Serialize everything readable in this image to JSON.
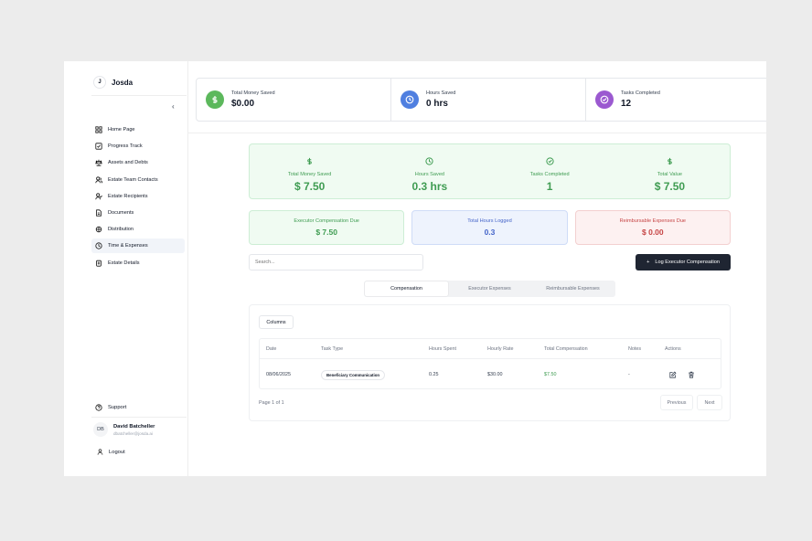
{
  "brand": {
    "initial": "J",
    "name": "Josda"
  },
  "sidebar": {
    "items": [
      {
        "label": "Home Page",
        "icon": "home-grid-icon"
      },
      {
        "label": "Progress Track",
        "icon": "checkbox-icon"
      },
      {
        "label": "Assets and Debts",
        "icon": "scale-icon"
      },
      {
        "label": "Estate Team Contacts",
        "icon": "users-icon"
      },
      {
        "label": "Estate Recipients",
        "icon": "user-check-icon"
      },
      {
        "label": "Documents",
        "icon": "document-icon"
      },
      {
        "label": "Distribution",
        "icon": "distribution-icon"
      },
      {
        "label": "Time & Expenses",
        "icon": "clock-icon",
        "active": true
      },
      {
        "label": "Estate Details",
        "icon": "clipboard-icon"
      }
    ],
    "support": "Support",
    "user": {
      "initials": "DB",
      "name": "David Batcheller",
      "email": "dbatcheller@josda.ai"
    },
    "logout": "Logout"
  },
  "top_stats": [
    {
      "label": "Total Money Saved",
      "value": "$0.00",
      "color": "#5cb85c",
      "icon": "dollar-icon"
    },
    {
      "label": "Hours Saved",
      "value": "0 hrs",
      "color": "#4f7fe0",
      "icon": "clock-icon"
    },
    {
      "label": "Tasks Completed",
      "value": "12",
      "color": "#9b59d0",
      "icon": "check-circle-icon"
    }
  ],
  "summary": [
    {
      "label": "Total Money Saved",
      "value": "$ 7.50",
      "icon": "dollar-icon"
    },
    {
      "label": "Hours Saved",
      "value": "0.3 hrs",
      "icon": "clock-icon"
    },
    {
      "label": "Tasks Completed",
      "value": "1",
      "icon": "check-circle-icon"
    },
    {
      "label": "Total Value",
      "value": "$ 7.50",
      "icon": "dollar-icon"
    }
  ],
  "cards": [
    {
      "label": "Executor Compensation Due",
      "value": "$ 7.50"
    },
    {
      "label": "Total Hours Logged",
      "value": "0.3"
    },
    {
      "label": "Reimbursable Expenses Due",
      "value": "$ 0.00"
    }
  ],
  "search": {
    "placeholder": "Search..."
  },
  "actions": {
    "log_button": "Log Executor Compensation"
  },
  "tabs": [
    {
      "label": "Compensation",
      "active": true
    },
    {
      "label": "Executor Expenses"
    },
    {
      "label": "Reimbursable Expenses"
    }
  ],
  "table": {
    "columns_button": "Columns",
    "headers": [
      "Date",
      "Task Type",
      "Hours Spent",
      "Hourly Rate",
      "Total Compensation",
      "Notes",
      "Actions"
    ],
    "rows": [
      {
        "date": "08/06/2025",
        "task_type": "Beneficiary Communication",
        "hours": "0.25",
        "rate": "$30.00",
        "total": "$7.50",
        "notes": "-"
      }
    ],
    "page_text": "Page 1 of 1",
    "prev": "Previous",
    "next": "Next"
  }
}
